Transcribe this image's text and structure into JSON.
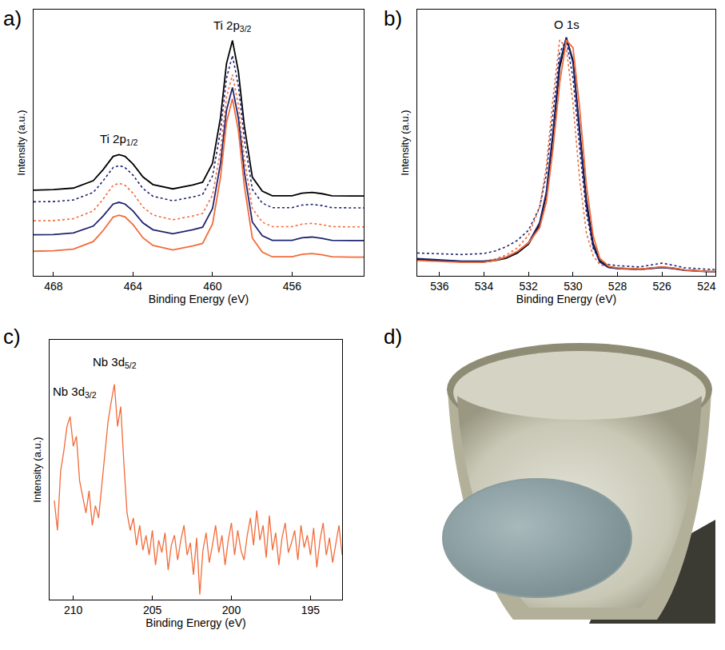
{
  "chart_data": [
    {
      "type": "line",
      "label": "a)",
      "x_label": "Binding Energy (eV)",
      "y_label": "Intensity (a.u.)",
      "xlim": [
        469,
        452.4
      ],
      "xticks": [
        468,
        464,
        460,
        456
      ],
      "ylim": [
        0,
        105
      ],
      "grid": false,
      "tick_labels": "x",
      "x": [
        469,
        468,
        467,
        466,
        465.5,
        465,
        464.7,
        464.4,
        464,
        463.5,
        463,
        462,
        461,
        460.5,
        460,
        459.6,
        459.3,
        459,
        458.7,
        458.4,
        458,
        457.5,
        457,
        456,
        455.5,
        455,
        454.5,
        454,
        453,
        452.4
      ],
      "series": [
        {
          "color": "#000000",
          "line_style": "solid",
          "values": [
            33.8,
            34.0,
            34.6,
            37.5,
            41.9,
            47.1,
            47.8,
            47.1,
            44.1,
            39.0,
            36.0,
            34.3,
            35.8,
            36.9,
            44.4,
            62.4,
            83.7,
            92.8,
            80.5,
            59.0,
            38.9,
            33.4,
            31.6,
            31.6,
            32.6,
            32.9,
            32.4,
            31.6,
            31.5,
            31.5
          ]
        },
        {
          "color": "#1f2470",
          "line_style": "dotted",
          "values": [
            29.2,
            29.3,
            29.9,
            32.9,
            37.5,
            42.7,
            43.5,
            42.7,
            39.7,
            34.4,
            31.4,
            29.6,
            31.1,
            32.1,
            39.4,
            57.1,
            77.9,
            86.9,
            74.9,
            53.8,
            34.1,
            28.7,
            26.9,
            26.9,
            27.9,
            28.2,
            27.7,
            26.9,
            26.8,
            26.8
          ]
        },
        {
          "color": "#f26b3a",
          "line_style": "dotted",
          "values": [
            21.7,
            21.8,
            22.5,
            25.6,
            30.3,
            35.7,
            36.5,
            35.7,
            32.6,
            27.1,
            24.0,
            22.1,
            23.6,
            24.6,
            31.9,
            49.5,
            70.4,
            79.3,
            67.3,
            46.2,
            26.6,
            21.2,
            19.4,
            19.4,
            20.4,
            20.7,
            20.2,
            19.4,
            19.3,
            19.3
          ]
        },
        {
          "color": "#1f2470",
          "line_style": "solid",
          "values": [
            16.2,
            16.3,
            16.9,
            19.6,
            23.6,
            28.3,
            29.0,
            28.3,
            25.6,
            20.9,
            18.2,
            16.6,
            18.2,
            19.2,
            26.6,
            44.3,
            65.3,
            74.3,
            62.2,
            41.0,
            21.2,
            15.8,
            14.0,
            14.0,
            15.0,
            15.3,
            14.8,
            14.0,
            13.9,
            13.9
          ]
        },
        {
          "color": "#f26b3a",
          "line_style": "solid",
          "values": [
            9.7,
            9.9,
            10.5,
            13.5,
            17.9,
            23.2,
            23.9,
            23.2,
            20.2,
            15.0,
            12.0,
            10.2,
            11.8,
            12.8,
            20.5,
            38.8,
            60.5,
            69.8,
            57.3,
            35.4,
            14.9,
            9.4,
            7.5,
            7.5,
            8.5,
            8.8,
            8.3,
            7.5,
            7.4,
            7.4
          ]
        }
      ],
      "annotations": [
        {
          "text": "Ti 2p",
          "subscript": "1/2",
          "x": 464.7,
          "y": 50
        },
        {
          "text": "Ti 2p",
          "subscript": "3/2",
          "x": 459,
          "y": 95
        }
      ]
    },
    {
      "type": "line",
      "label": "b)",
      "x_label": "Binding Energy (eV)",
      "y_label": "Intensity (a.u.)",
      "xlim": [
        537,
        523.6
      ],
      "xticks": [
        536,
        534,
        532,
        530,
        528,
        526,
        524
      ],
      "ylim": [
        0,
        105
      ],
      "grid": false,
      "tick_labels": "x",
      "x": [
        537,
        536,
        535,
        534,
        533.5,
        533,
        532.5,
        532,
        531.5,
        531.2,
        530.9,
        530.6,
        530.3,
        530.0,
        529.7,
        529.4,
        529.1,
        528.8,
        528.4,
        528,
        527,
        526.5,
        526,
        525.5,
        525,
        524,
        523.6
      ],
      "series": [
        {
          "color": "#1f2470",
          "line_style": "dotted",
          "values": [
            9.0,
            8.6,
            8.4,
            8.8,
            9.8,
            11.5,
            14,
            18,
            27,
            40,
            64,
            88,
            93,
            78,
            50,
            25,
            11,
            6,
            4.5,
            4,
            3.5,
            4.2,
            5,
            4.2,
            3.2,
            2.6,
            2.5
          ]
        },
        {
          "color": "#f26b3a",
          "line_style": "dotted",
          "values": [
            6.2,
            5.8,
            5.5,
            5.8,
            6.6,
            8.2,
            11,
            16,
            27,
            43,
            70,
            93,
            90,
            68,
            38,
            17,
            8,
            4.5,
            3.4,
            3.0,
            2.6,
            3.0,
            3.4,
            3.0,
            2.3,
            1.8,
            1.7
          ]
        },
        {
          "color": "#000000",
          "line_style": "solid",
          "values": [
            6.5,
            6.0,
            5.6,
            5.5,
            6.0,
            7.0,
            9.0,
            12.5,
            20,
            32,
            55,
            82,
            94,
            85,
            58,
            30,
            13,
            6,
            3.5,
            3.0,
            2.6,
            3.0,
            3.4,
            3.0,
            2.3,
            1.8,
            1.7
          ]
        },
        {
          "color": "#1f2470",
          "line_style": "solid",
          "values": [
            6.8,
            6.3,
            5.8,
            5.8,
            6.3,
            7.4,
            9.5,
            13,
            21,
            33,
            57,
            84,
            94,
            84,
            56,
            28,
            12,
            5.5,
            3.3,
            2.9,
            2.5,
            2.9,
            3.3,
            2.9,
            2.2,
            1.7,
            1.6
          ]
        },
        {
          "color": "#f26b3a",
          "line_style": "solid",
          "values": [
            6.0,
            5.6,
            5.3,
            5.4,
            6.1,
            7.4,
            9.6,
            13,
            19,
            29,
            50,
            76,
            93,
            90,
            66,
            36,
            16,
            7,
            3.8,
            3.1,
            2.6,
            3.1,
            3.6,
            3.1,
            2.3,
            1.8,
            1.7
          ]
        }
      ],
      "annotations": [
        {
          "text": "O 1s",
          "x": 530.3,
          "y": 96
        }
      ]
    },
    {
      "type": "line",
      "label": "c)",
      "x_label": "Binding Energy (eV)",
      "y_label": "Intensity (a.u.)",
      "xlim": [
        211.5,
        193
      ],
      "xticks": [
        210,
        205,
        200,
        195
      ],
      "ylim": [
        0,
        105
      ],
      "grid": false,
      "tick_labels": "x",
      "x": [
        211.2,
        211.0,
        210.8,
        210.6,
        210.4,
        210.2,
        210.0,
        209.8,
        209.6,
        209.4,
        209.2,
        209.0,
        208.8,
        208.6,
        208.4,
        208.2,
        208.0,
        207.8,
        207.6,
        207.4,
        207.2,
        207.0,
        206.8,
        206.6,
        206.4,
        206.2,
        206.0,
        205.8,
        205.6,
        205.4,
        205.2,
        205.0,
        204.8,
        204.6,
        204.4,
        204.2,
        204.0,
        203.8,
        203.6,
        203.4,
        203.2,
        203.0,
        202.8,
        202.6,
        202.4,
        202.2,
        202.0,
        201.8,
        201.6,
        201.4,
        201.2,
        201.0,
        200.8,
        200.6,
        200.4,
        200.2,
        200.0,
        199.8,
        199.6,
        199.4,
        199.2,
        199.0,
        198.8,
        198.6,
        198.4,
        198.2,
        198.0,
        197.8,
        197.6,
        197.4,
        197.2,
        197.0,
        196.8,
        196.6,
        196.4,
        196.2,
        196.0,
        195.8,
        195.6,
        195.4,
        195.2,
        195.0,
        194.8,
        194.6,
        194.4,
        194.2,
        194.0,
        193.8,
        193.6,
        193.4,
        193.2,
        193.0
      ],
      "series": [
        {
          "color": "#f26b3a",
          "line_style": "solid",
          "values": [
            40,
            28,
            52,
            60,
            70,
            74,
            62,
            66,
            48,
            42,
            35,
            44,
            30,
            38,
            33,
            46,
            58,
            72,
            80,
            87,
            70,
            78,
            55,
            35,
            28,
            33,
            22,
            30,
            20,
            26,
            18,
            28,
            14,
            24,
            19,
            27,
            12,
            22,
            26,
            16,
            24,
            30,
            18,
            23,
            10,
            25,
            2,
            20,
            27,
            15,
            22,
            30,
            19,
            26,
            14,
            24,
            31,
            18,
            28,
            20,
            16,
            26,
            33,
            22,
            36,
            24,
            30,
            17,
            34,
            20,
            27,
            14,
            25,
            31,
            19,
            23,
            28,
            16,
            30,
            21,
            26,
            18,
            29,
            13,
            24,
            31,
            18,
            25,
            15,
            22,
            30,
            18
          ]
        }
      ],
      "annotations": [
        {
          "text": "Nb 3d",
          "subscript": "3/2",
          "x": 209.9,
          "y": 80
        },
        {
          "text": "Nb 3d",
          "subscript": "5/2",
          "x": 207.4,
          "y": 92
        }
      ]
    }
  ],
  "photo": {
    "label": "d)"
  }
}
